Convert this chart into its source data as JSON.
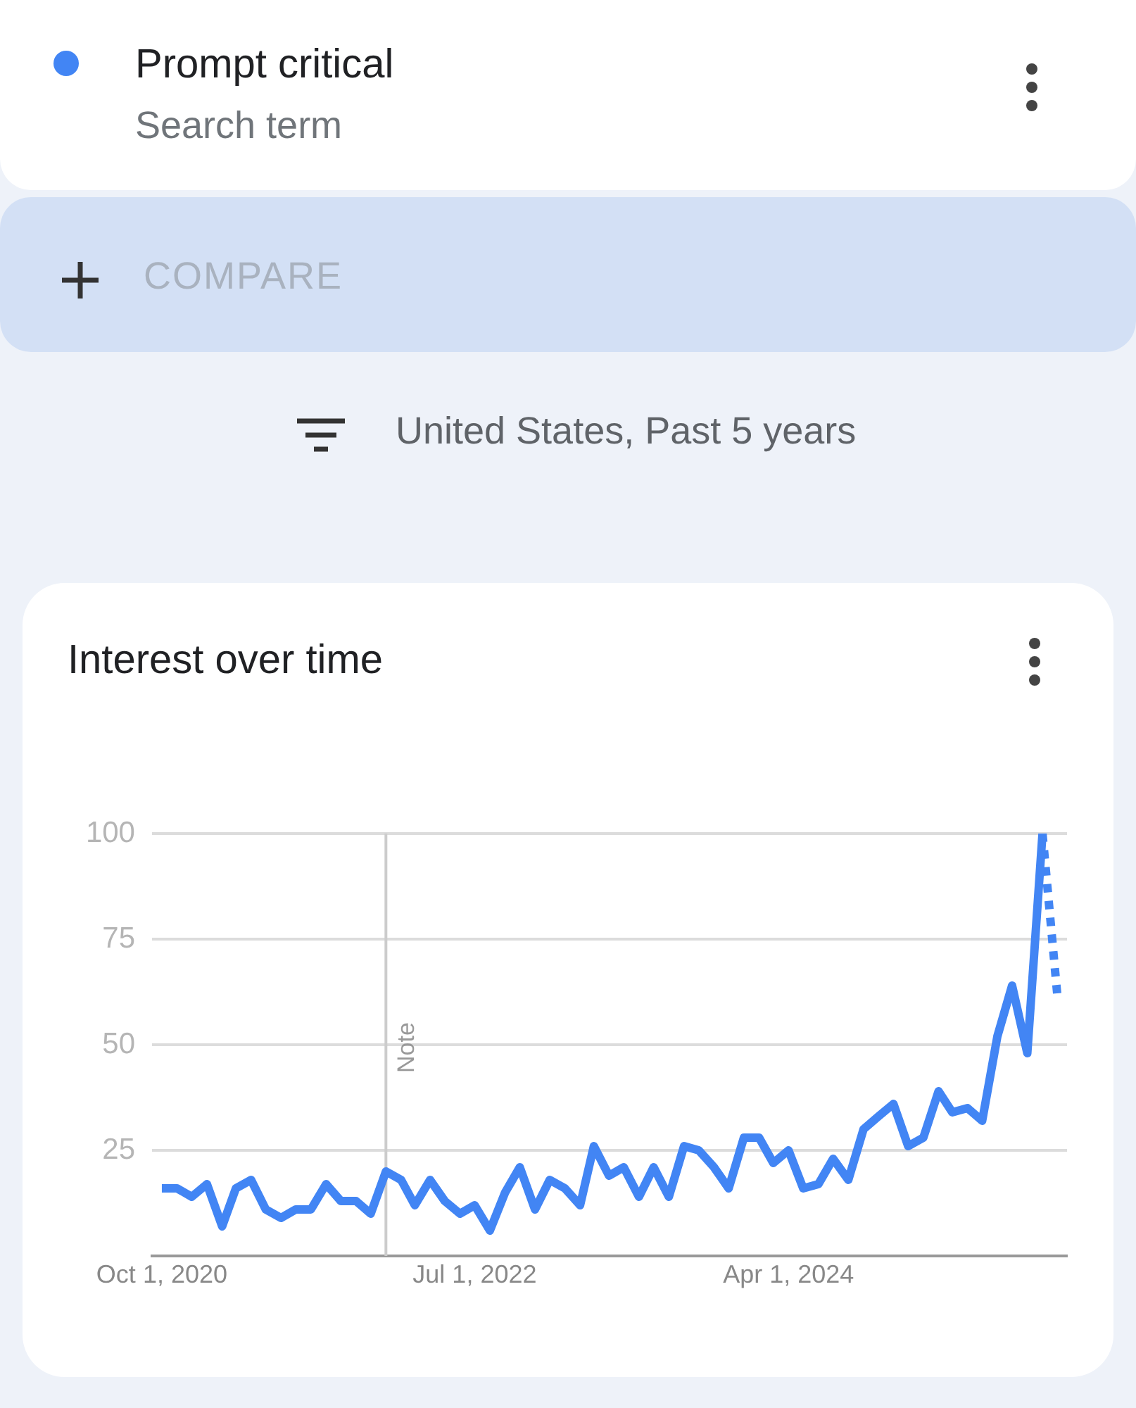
{
  "chart_data": {
    "type": "line",
    "title": "Interest over time",
    "annotations": [
      "Search term",
      "COMPARE",
      "United States, Past 5 years"
    ],
    "legend": "top",
    "grid": "y",
    "marker": "none",
    "x": [
      "2020-10",
      "2020-11",
      "2020-12",
      "2021-01",
      "2021-02",
      "2021-03",
      "2021-04",
      "2021-05",
      "2021-06",
      "2021-07",
      "2021-08",
      "2021-09",
      "2021-10",
      "2021-11",
      "2021-12",
      "2022-01",
      "2022-02",
      "2022-03",
      "2022-04",
      "2022-05",
      "2022-06",
      "2022-07",
      "2022-08",
      "2022-09",
      "2022-10",
      "2022-11",
      "2022-12",
      "2023-01",
      "2023-02",
      "2023-03",
      "2023-04",
      "2023-05",
      "2023-06",
      "2023-07",
      "2023-08",
      "2023-09",
      "2023-10",
      "2023-11",
      "2023-12",
      "2024-01",
      "2024-02",
      "2024-03",
      "2024-04",
      "2024-05",
      "2024-06",
      "2024-07",
      "2024-08",
      "2024-09",
      "2024-10",
      "2024-11",
      "2024-12",
      "2025-01",
      "2025-02",
      "2025-03",
      "2025-04",
      "2025-05",
      "2025-06",
      "2025-07",
      "2025-08",
      "2025-09"
    ],
    "series": [
      {
        "name": "Prompt critical",
        "color": "#4285f4",
        "line_style": "solid",
        "values": [
          16,
          16,
          14,
          17,
          7,
          16,
          18,
          11,
          9,
          11,
          11,
          17,
          13,
          13,
          10,
          20,
          18,
          12,
          18,
          13,
          10,
          12,
          6,
          15,
          21,
          11,
          18,
          16,
          12,
          26,
          19,
          21,
          14,
          21,
          14,
          26,
          25,
          21,
          16,
          28,
          28,
          22,
          25,
          16,
          17,
          23,
          18,
          30,
          33,
          36,
          26,
          28,
          39,
          34,
          35,
          32,
          52,
          64,
          48,
          100
        ]
      },
      {
        "color": "#4285f4",
        "line_style": "dotted",
        "x": [
          "2025-09",
          "2025-10"
        ],
        "values": [
          100,
          62
        ]
      }
    ],
    "xlim": [
      "2020-09-11",
      "2025-10-21"
    ],
    "xticks": [
      {
        "value": "2020-10-01",
        "label": "Oct 1, 2020"
      },
      {
        "value": "2022-07-01",
        "label": "Jul 1, 2022"
      },
      {
        "value": "2024-04-01",
        "label": "Apr 1, 2024"
      }
    ],
    "ylim": [
      0,
      100
    ],
    "yticks": [
      25,
      50,
      75,
      100
    ],
    "ref_lines": [
      {
        "axis": "x",
        "value": "2022-01",
        "label": "Note",
        "color": "#cccccc"
      }
    ]
  }
}
